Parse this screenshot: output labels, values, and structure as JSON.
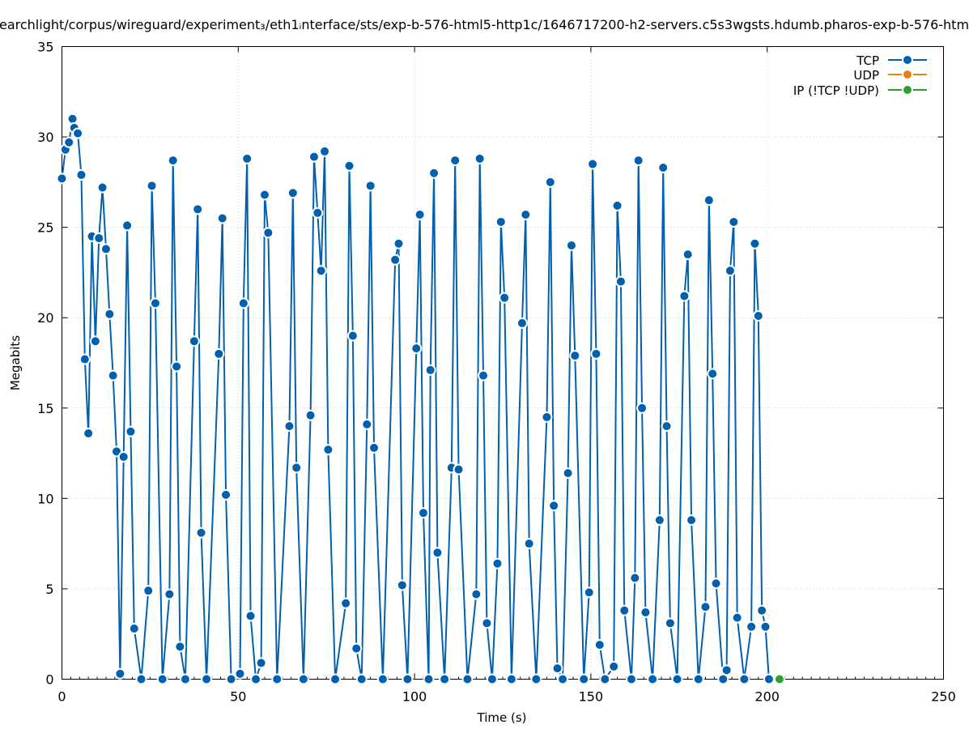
{
  "chart_data": {
    "type": "line",
    "title": "earchlight/corpus/wireguard/experiment₃/eth1ᵢnterface/sts/exp-b-576-html5-http1c/1646717200-h2-servers.c5s3wgsts.hdumb.pharos-exp-b-576-htm",
    "xlabel": "Time (s)",
    "ylabel": "Megabits",
    "xlim": [
      0,
      250
    ],
    "ylim": [
      0,
      35
    ],
    "xticks": [
      0,
      50,
      100,
      150,
      200,
      250
    ],
    "yticks": [
      0,
      5,
      10,
      15,
      20,
      25,
      30,
      35
    ],
    "grid": true,
    "legend_position": "top-right",
    "series": [
      {
        "name": "TCP",
        "color": "#0060ad",
        "points": [
          [
            0,
            27.7
          ],
          [
            1,
            29.3
          ],
          [
            2,
            29.7
          ],
          [
            3,
            31.0
          ],
          [
            3.5,
            30.5
          ],
          [
            4.5,
            30.2
          ],
          [
            5.5,
            27.9
          ],
          [
            6.5,
            17.7
          ],
          [
            7.5,
            13.6
          ],
          [
            8.5,
            24.5
          ],
          [
            9.5,
            18.7
          ],
          [
            10.5,
            24.4
          ],
          [
            11.5,
            27.2
          ],
          [
            12.5,
            23.8
          ],
          [
            13.5,
            20.2
          ],
          [
            14.5,
            16.8
          ],
          [
            15.5,
            12.6
          ],
          [
            16.5,
            0.3
          ],
          [
            17.5,
            12.3
          ],
          [
            18.5,
            25.1
          ],
          [
            19.5,
            13.7
          ],
          [
            20.5,
            2.8
          ],
          [
            22.5,
            0
          ],
          [
            24.5,
            4.9
          ],
          [
            25.5,
            27.3
          ],
          [
            26.5,
            20.8
          ],
          [
            28.5,
            0
          ],
          [
            30.5,
            4.7
          ],
          [
            31.5,
            28.7
          ],
          [
            32.5,
            17.3
          ],
          [
            33.5,
            1.8
          ],
          [
            35,
            0
          ],
          [
            37.5,
            18.7
          ],
          [
            38.5,
            26.0
          ],
          [
            39.5,
            8.1
          ],
          [
            41,
            0
          ],
          [
            44.5,
            18.0
          ],
          [
            45.5,
            25.5
          ],
          [
            46.5,
            10.2
          ],
          [
            48,
            0
          ],
          [
            50.5,
            0.3
          ],
          [
            51.5,
            20.8
          ],
          [
            52.5,
            28.8
          ],
          [
            53.5,
            3.5
          ],
          [
            55,
            0
          ],
          [
            56.5,
            0.9
          ],
          [
            57.5,
            26.8
          ],
          [
            58.5,
            24.7
          ],
          [
            61,
            0
          ],
          [
            64.5,
            14.0
          ],
          [
            65.5,
            26.9
          ],
          [
            66.5,
            11.7
          ],
          [
            68.5,
            0
          ],
          [
            70.5,
            14.6
          ],
          [
            71.5,
            28.9
          ],
          [
            72.5,
            25.8
          ],
          [
            73.5,
            22.6
          ],
          [
            74.5,
            29.2
          ],
          [
            75.5,
            12.7
          ],
          [
            77.5,
            0
          ],
          [
            80.5,
            4.2
          ],
          [
            81.5,
            28.4
          ],
          [
            82.5,
            19.0
          ],
          [
            83.5,
            1.7
          ],
          [
            85,
            0
          ],
          [
            86.5,
            14.1
          ],
          [
            87.5,
            27.3
          ],
          [
            88.5,
            12.8
          ],
          [
            91,
            0
          ],
          [
            94.5,
            23.2
          ],
          [
            95.5,
            24.1
          ],
          [
            96.5,
            5.2
          ],
          [
            98,
            0
          ],
          [
            100.5,
            18.3
          ],
          [
            101.5,
            25.7
          ],
          [
            102.5,
            9.2
          ],
          [
            104,
            0
          ],
          [
            104.5,
            17.1
          ],
          [
            105.5,
            28.0
          ],
          [
            106.5,
            7.0
          ],
          [
            108.5,
            0
          ],
          [
            110.5,
            11.7
          ],
          [
            111.5,
            28.7
          ],
          [
            112.5,
            11.6
          ],
          [
            115,
            0
          ],
          [
            117.5,
            4.7
          ],
          [
            118.5,
            28.8
          ],
          [
            119.5,
            16.8
          ],
          [
            120.5,
            3.1
          ],
          [
            122,
            0
          ],
          [
            123.5,
            6.4
          ],
          [
            124.5,
            25.3
          ],
          [
            125.5,
            21.1
          ],
          [
            127.5,
            0
          ],
          [
            130.5,
            19.7
          ],
          [
            131.5,
            25.7
          ],
          [
            132.5,
            7.5
          ],
          [
            134.5,
            0
          ],
          [
            137.5,
            14.5
          ],
          [
            138.5,
            27.5
          ],
          [
            139.5,
            9.6
          ],
          [
            140.5,
            0.6
          ],
          [
            142,
            0
          ],
          [
            143.5,
            11.4
          ],
          [
            144.5,
            24.0
          ],
          [
            145.5,
            17.9
          ],
          [
            148,
            0
          ],
          [
            149.5,
            4.8
          ],
          [
            150.5,
            28.5
          ],
          [
            151.5,
            18.0
          ],
          [
            152.5,
            1.9
          ],
          [
            154,
            0
          ],
          [
            156.5,
            0.7
          ],
          [
            157.5,
            26.2
          ],
          [
            158.5,
            22.0
          ],
          [
            159.5,
            3.8
          ],
          [
            161.5,
            0
          ],
          [
            162.5,
            5.6
          ],
          [
            163.5,
            28.7
          ],
          [
            164.5,
            15.0
          ],
          [
            165.5,
            3.7
          ],
          [
            167.5,
            0
          ],
          [
            169.5,
            8.8
          ],
          [
            170.5,
            28.3
          ],
          [
            171.5,
            14.0
          ],
          [
            172.5,
            3.1
          ],
          [
            174.5,
            0
          ],
          [
            176.5,
            21.2
          ],
          [
            177.5,
            23.5
          ],
          [
            178.5,
            8.8
          ],
          [
            180.5,
            0
          ],
          [
            182.5,
            4.0
          ],
          [
            183.5,
            26.5
          ],
          [
            184.5,
            16.9
          ],
          [
            185.5,
            5.3
          ],
          [
            187.5,
            0
          ],
          [
            188.5,
            0.5
          ],
          [
            189.5,
            22.6
          ],
          [
            190.5,
            25.3
          ],
          [
            191.5,
            3.4
          ],
          [
            193.5,
            0
          ],
          [
            195.5,
            2.9
          ],
          [
            196.5,
            24.1
          ],
          [
            197.5,
            20.1
          ],
          [
            198.5,
            3.8
          ],
          [
            199.5,
            2.9
          ],
          [
            200.5,
            0
          ]
        ]
      },
      {
        "name": "UDP",
        "color": "#f07d12",
        "points": []
      },
      {
        "name": "IP (!TCP  !UDP)",
        "color": "#2ca02c",
        "points": [
          [
            203.5,
            0
          ]
        ]
      }
    ]
  }
}
